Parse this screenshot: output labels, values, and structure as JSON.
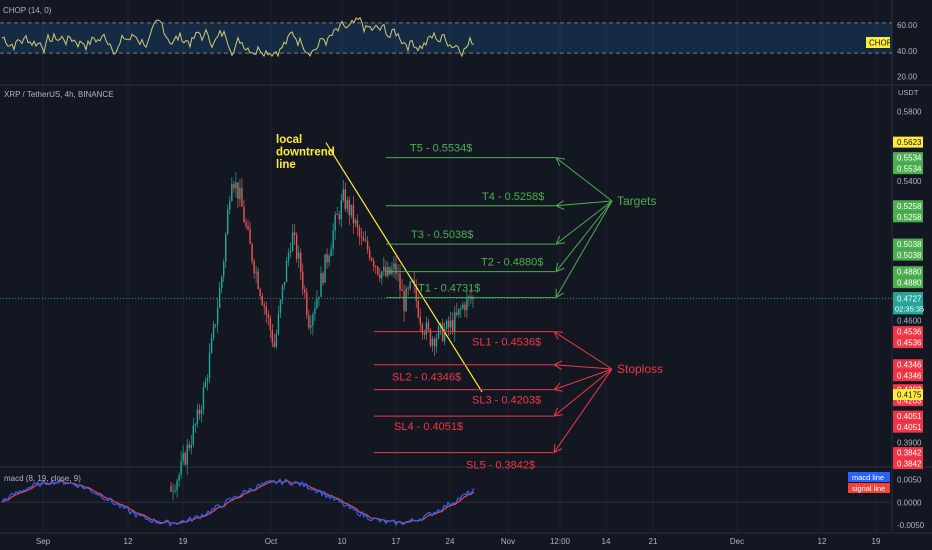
{
  "colors": {
    "background": "#131722",
    "grid": "#1e222d",
    "text": "#b2b5be",
    "up": "#26a69a",
    "down": "#ef5350",
    "target": "#4caf50",
    "stop": "#f23645",
    "trendline": "#ffeb3b",
    "chop": "#d1c97a",
    "macd": "#2962ff",
    "signal": "#f44336",
    "last_price": "#26a69a",
    "badge_yellow": "#ffeb3b"
  },
  "header": {
    "symbol_title": "XRP / TetherUS, 4h, BINANCE",
    "chop_title": "CHOP (14, 0)",
    "macd_title": "macd (8, 19, close, 9)"
  },
  "chart_data": [
    {
      "type": "candlestick",
      "title": "XRP / TetherUS, 4h, BINANCE",
      "currency_label": "USDT",
      "ylim": [
        0.3765,
        0.5945
      ],
      "y_ticks": [
        "0.5800",
        "0.5400",
        "0.5200",
        "0.4600",
        "0.3900"
      ],
      "x_ticks": [
        "Sep",
        "12",
        "19",
        "Oct",
        "10",
        "17",
        "24",
        "Nov",
        "12:00",
        "14",
        "21",
        "Dec",
        "12",
        "19"
      ],
      "last_price": "0.4727",
      "countdown": "02:35:35",
      "price_path": [
        0.365,
        0.372,
        0.388,
        0.402,
        0.424,
        0.455,
        0.49,
        0.545,
        0.53,
        0.505,
        0.485,
        0.465,
        0.445,
        0.48,
        0.51,
        0.49,
        0.46,
        0.475,
        0.495,
        0.515,
        0.53,
        0.52,
        0.505,
        0.5,
        0.49,
        0.485,
        0.49,
        0.47,
        0.48,
        0.46,
        0.45,
        0.452,
        0.455,
        0.46,
        0.47,
        0.4727
      ],
      "annotations": {
        "trendline_label": "local\ndowntrend\nline",
        "targets_label": "Targets",
        "stoploss_label": "Stoploss",
        "targets": [
          {
            "label": "T5 - 0.5534$",
            "price": 0.5534
          },
          {
            "label": "T4 - 0.5258$",
            "price": 0.5258
          },
          {
            "label": "T3 - 0.5038$",
            "price": 0.5038
          },
          {
            "label": "T2 - 0.4880$",
            "price": 0.488
          },
          {
            "label": "T1 - 0.4731$",
            "price": 0.4731
          }
        ],
        "stops": [
          {
            "label": "SL1 - 0.4536$",
            "price": 0.4536
          },
          {
            "label": "SL2 - 0.4346$",
            "price": 0.4346
          },
          {
            "label": "SL3 - 0.4203$",
            "price": 0.4203
          },
          {
            "label": "SL4 - 0.4051$",
            "price": 0.4051
          },
          {
            "label": "SL5 - 0.3842$",
            "price": 0.3842
          }
        ]
      },
      "price_badges": [
        {
          "text": "0.5623",
          "price": 0.5623,
          "kind": "yellow"
        },
        {
          "text": "0.5534",
          "price": 0.5534,
          "kind": "target"
        },
        {
          "text": "0.5534",
          "price": 0.5534,
          "kind": "target",
          "stack": 1
        },
        {
          "text": "0.5258",
          "price": 0.5258,
          "kind": "target"
        },
        {
          "text": "0.5258",
          "price": 0.5258,
          "kind": "target",
          "stack": 1
        },
        {
          "text": "0.5038",
          "price": 0.5038,
          "kind": "target"
        },
        {
          "text": "0.5038",
          "price": 0.5038,
          "kind": "target",
          "stack": 1
        },
        {
          "text": "0.4880",
          "price": 0.488,
          "kind": "target"
        },
        {
          "text": "0.4880",
          "price": 0.488,
          "kind": "target",
          "stack": 1
        },
        {
          "text": "0.4731",
          "price": 0.4731,
          "kind": "target"
        },
        {
          "text": "0.4731",
          "price": 0.4731,
          "kind": "target",
          "stack": 1
        },
        {
          "text": "0.4536",
          "price": 0.4536,
          "kind": "stop"
        },
        {
          "text": "0.4536",
          "price": 0.4536,
          "kind": "stop",
          "stack": 1
        },
        {
          "text": "0.4346",
          "price": 0.4346,
          "kind": "stop"
        },
        {
          "text": "0.4346",
          "price": 0.4346,
          "kind": "stop",
          "stack": 1
        },
        {
          "text": "0.4203",
          "price": 0.4203,
          "kind": "stop"
        },
        {
          "text": "0.4203",
          "price": 0.4203,
          "kind": "stop",
          "stack": 1
        },
        {
          "text": "0.4175",
          "price": 0.4175,
          "kind": "yellow"
        },
        {
          "text": "0.4051",
          "price": 0.4051,
          "kind": "stop"
        },
        {
          "text": "0.4051",
          "price": 0.4051,
          "kind": "stop",
          "stack": 1
        },
        {
          "text": "0.3842",
          "price": 0.3842,
          "kind": "stop"
        },
        {
          "text": "0.3842",
          "price": 0.3842,
          "kind": "stop",
          "stack": 1
        }
      ]
    },
    {
      "type": "line",
      "title": "CHOP (14, 0)",
      "badge": "CHOP",
      "ylim": [
        15,
        78
      ],
      "y_ticks": [
        "60.00",
        "40.00",
        "20.00"
      ],
      "bands": [
        38.2,
        61.8
      ]
    },
    {
      "type": "line",
      "title": "macd (8, 19, close, 9)",
      "ylim": [
        -0.0065,
        0.0075
      ],
      "y_ticks": [
        "0.0050",
        "0.0000",
        "-0.0050"
      ],
      "series": [
        {
          "name": "macd line"
        },
        {
          "name": "signal line"
        }
      ]
    }
  ]
}
